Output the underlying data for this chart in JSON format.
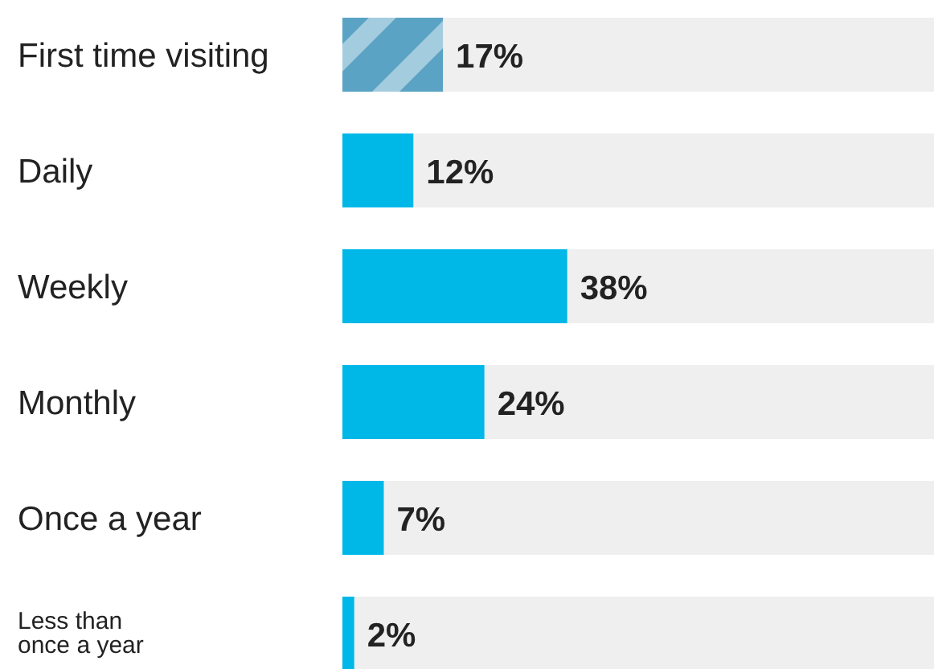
{
  "chart_data": {
    "type": "bar",
    "orientation": "horizontal",
    "categories": [
      "First time visiting",
      "Daily",
      "Weekly",
      "Monthly",
      "Once a year",
      "Less than once a year"
    ],
    "values": [
      17,
      12,
      38,
      24,
      7,
      2
    ],
    "colors": [
      "#5aa3c4",
      "#00b8e8",
      "#00b8e8",
      "#00b8e8",
      "#00b8e8",
      "#00b8e8"
    ],
    "value_labels": [
      "17%",
      "12%",
      "38%",
      "24%",
      "7%",
      "2%"
    ],
    "xlim": [
      0,
      100
    ],
    "tick_labels": "y"
  }
}
